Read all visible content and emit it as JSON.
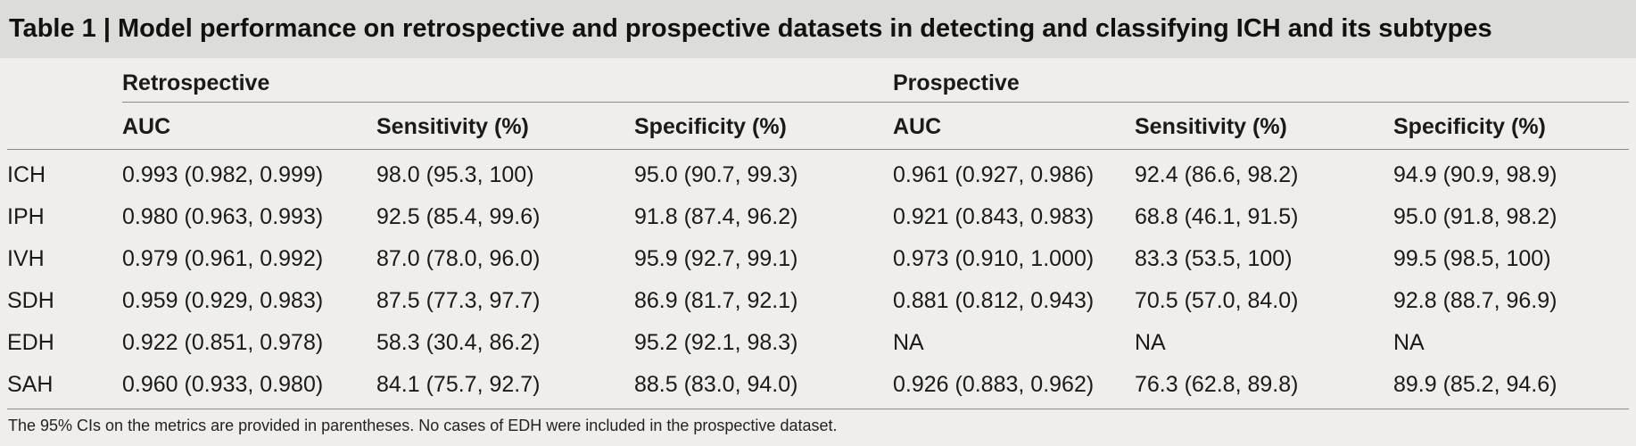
{
  "title": "Table 1 | Model performance on retrospective and prospective datasets in detecting and classifying ICH and its subtypes",
  "groups": [
    "Retrospective",
    "Prospective"
  ],
  "headers": [
    "AUC",
    "Sensitivity (%)",
    "Specificity (%)",
    "AUC",
    "Sensitivity (%)",
    "Specificity (%)"
  ],
  "rows": [
    {
      "label": "ICH",
      "values": [
        "0.993 (0.982, 0.999)",
        "98.0 (95.3, 100)",
        "95.0 (90.7, 99.3)",
        "0.961 (0.927, 0.986)",
        "92.4 (86.6, 98.2)",
        "94.9 (90.9, 98.9)"
      ]
    },
    {
      "label": "IPH",
      "values": [
        "0.980 (0.963, 0.993)",
        "92.5 (85.4, 99.6)",
        "91.8 (87.4, 96.2)",
        "0.921 (0.843, 0.983)",
        "68.8 (46.1, 91.5)",
        "95.0 (91.8, 98.2)"
      ]
    },
    {
      "label": "IVH",
      "values": [
        "0.979 (0.961, 0.992)",
        "87.0 (78.0, 96.0)",
        "95.9 (92.7, 99.1)",
        "0.973 (0.910, 1.000)",
        "83.3 (53.5, 100)",
        "99.5 (98.5, 100)"
      ]
    },
    {
      "label": "SDH",
      "values": [
        "0.959 (0.929, 0.983)",
        "87.5 (77.3, 97.7)",
        "86.9 (81.7, 92.1)",
        "0.881 (0.812, 0.943)",
        "70.5 (57.0, 84.0)",
        "92.8 (88.7, 96.9)"
      ]
    },
    {
      "label": "EDH",
      "values": [
        "0.922 (0.851, 0.978)",
        "58.3 (30.4, 86.2)",
        "95.2 (92.1, 98.3)",
        "NA",
        "NA",
        "NA"
      ]
    },
    {
      "label": "SAH",
      "values": [
        "0.960 (0.933, 0.980)",
        "84.1 (75.7, 92.7)",
        "88.5 (83.0, 94.0)",
        "0.926 (0.883, 0.962)",
        "76.3 (62.8, 89.8)",
        "89.9 (85.2, 94.6)"
      ]
    }
  ],
  "footnote": "The 95% CIs on the metrics are provided in parentheses. No cases of EDH were included in the prospective dataset."
}
